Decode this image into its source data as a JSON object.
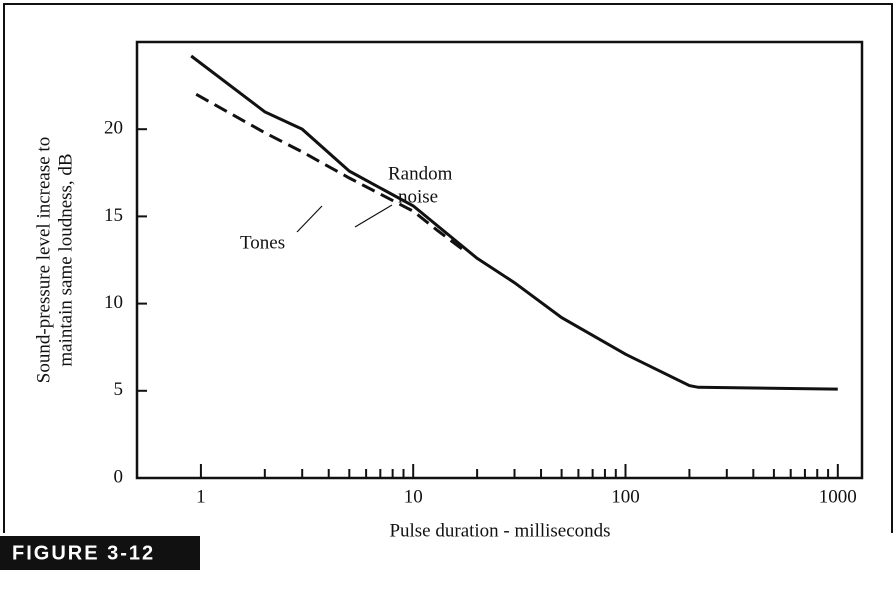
{
  "chart_data": {
    "type": "line",
    "figure_label": "FIGURE 3-12",
    "xlabel": "Pulse duration - milliseconds",
    "ylabel": [
      "Sound-pressure level increase to",
      "maintain same loudness, dB"
    ],
    "xscale": "log",
    "xlim": [
      0.5,
      1300
    ],
    "ylim": [
      0,
      25
    ],
    "xticks": [
      1,
      10,
      100,
      1000
    ],
    "xminor_ticks": [
      2,
      3,
      4,
      5,
      6,
      7,
      8,
      9,
      20,
      30,
      40,
      50,
      60,
      70,
      80,
      90,
      200,
      300,
      400,
      500,
      600,
      700,
      800,
      900
    ],
    "yticks": [
      0,
      5,
      10,
      15,
      20
    ],
    "series": [
      {
        "name": "Random noise",
        "color": "#111111",
        "dash": "solid",
        "x": [
          0.9,
          2,
          3,
          5,
          10,
          20,
          30,
          50,
          100,
          200,
          220,
          1000
        ],
        "values": [
          24.2,
          21,
          20,
          17.6,
          15.6,
          12.6,
          11.2,
          9.2,
          7.1,
          5.3,
          5.2,
          5.1
        ]
      },
      {
        "name": "Tones",
        "color": "#111111",
        "dash": "dashed",
        "x": [
          0.95,
          2,
          3,
          5,
          10,
          13,
          18
        ],
        "values": [
          22,
          19.8,
          18.7,
          17.2,
          15.3,
          14.2,
          12.9
        ]
      }
    ],
    "annotations": [
      {
        "text": "Random",
        "series": 0
      },
      {
        "text": "noise",
        "series": 0
      },
      {
        "text": "Tones",
        "series": 1
      }
    ]
  }
}
